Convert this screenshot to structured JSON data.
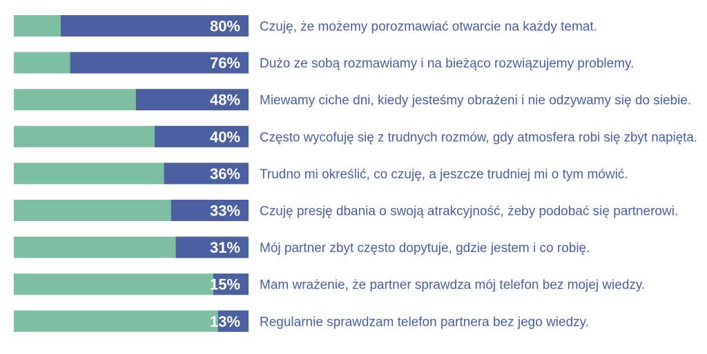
{
  "colors": {
    "bar_bg": "#7dbfa3",
    "bar_fill": "#4a60a1",
    "pct_text": "#ffffff",
    "label_text": "#4a60a1",
    "background": "#ffffff"
  },
  "chart_data": {
    "type": "bar",
    "orientation": "horizontal",
    "unit": "%",
    "xlim": [
      0,
      100
    ],
    "grid": false,
    "legend": "none",
    "categories": [
      "Czuję, że możemy porozmawiać otwarcie na każdy temat.",
      "Dużo ze sobą rozmawiamy i na bieżąco rozwiązujemy problemy.",
      "Miewamy ciche dni, kiedy jesteśmy obrażeni i nie odzywamy się do siebie.",
      "Często wycofuję się z trudnych rozmów, gdy atmosfera robi się zbyt napięta.",
      "Trudno mi określić, co czuję, a jeszcze trudniej mi o tym mówić.",
      "Czuję presję dbania o swoją atrakcyjność, żeby podobać się partnerowi.",
      "Mój partner zbyt często dopytuje, gdzie jestem i co robię.",
      "Mam wrażenie, że partner sprawdza mój telefon bez mojej wiedzy.",
      "Regularnie sprawdzam telefon partnera bez jego wiedzy."
    ],
    "values": [
      80,
      76,
      48,
      40,
      36,
      33,
      31,
      15,
      13
    ],
    "value_labels": [
      "80%",
      "76%",
      "48%",
      "40%",
      "36%",
      "33%",
      "31%",
      "15%",
      "13%"
    ]
  }
}
